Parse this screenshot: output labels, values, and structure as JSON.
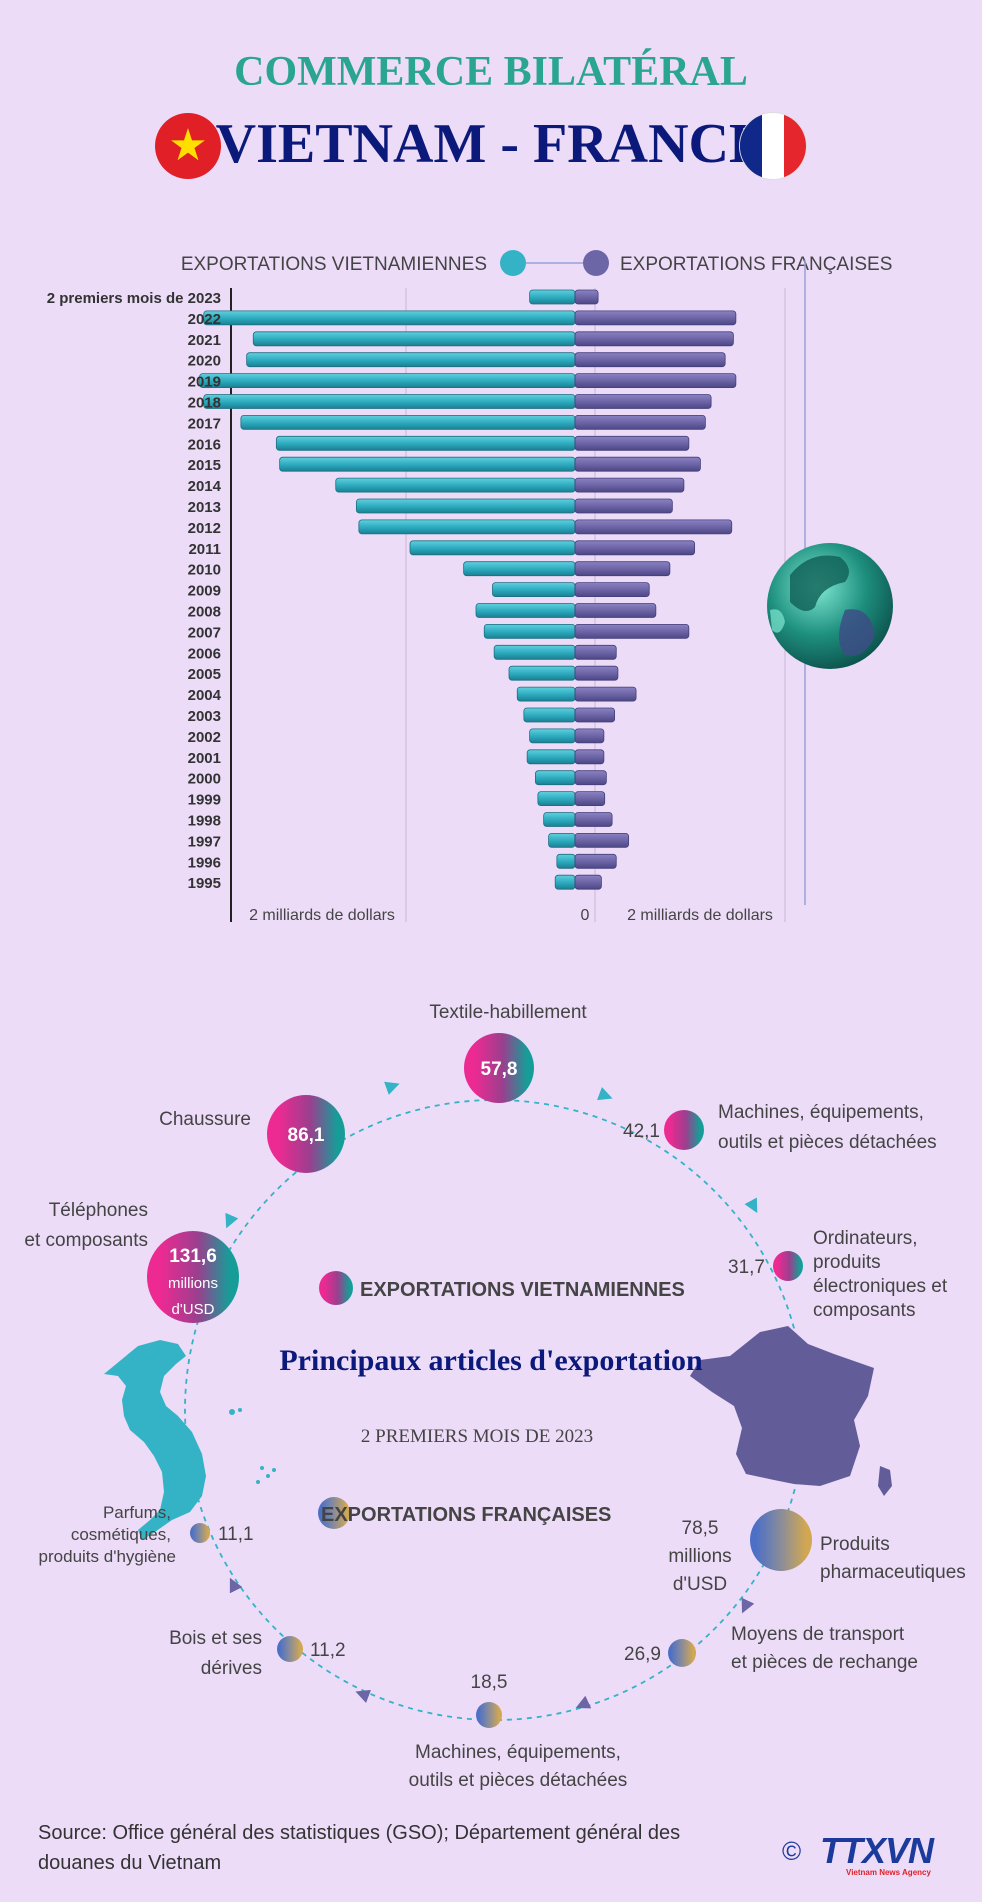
{
  "header": {
    "title_top": "COMMERCE BILATÉRAL",
    "title_main": "VIETNAM - FRANCE"
  },
  "colors": {
    "vn": "#34b3c6",
    "fr": "#6d66a6",
    "magenta": "#e53294",
    "teal_dark": "#1e8f93",
    "gold": "#c3a55e",
    "navy": "#0b1a7a",
    "background": "#ecdcf8"
  },
  "icons": [
    "vietnam-flag-icon",
    "france-flag-icon",
    "globe-icon",
    "vietnam-map-icon",
    "france-map-icon",
    "copyright-icon"
  ],
  "chart_data": [
    {
      "type": "bar",
      "orientation": "horizontal-diverging",
      "legend": [
        "EXPORTATIONS VIETNAMIENNES",
        "EXPORTATIONS FRANÇAISES"
      ],
      "legend_position": "top",
      "categories": [
        "2 premiers mois de 2023",
        "2022",
        "2021",
        "2020",
        "2019",
        "2018",
        "2017",
        "2016",
        "2015",
        "2014",
        "2013",
        "2012",
        "2011",
        "2010",
        "2009",
        "2008",
        "2007",
        "2006",
        "2005",
        "2004",
        "2003",
        "2002",
        "2001",
        "2000",
        "1999",
        "1998",
        "1997",
        "1996",
        "1995"
      ],
      "series": [
        {
          "name": "EXPORTATIONS VIETNAMIENNES",
          "values": [
            0.55,
            4.5,
            3.9,
            3.98,
            4.55,
            4.5,
            4.05,
            3.62,
            3.58,
            2.9,
            2.65,
            2.62,
            2.0,
            1.35,
            1.0,
            1.2,
            1.1,
            0.98,
            0.8,
            0.7,
            0.62,
            0.55,
            0.58,
            0.48,
            0.45,
            0.38,
            0.32,
            0.22,
            0.24
          ]
        },
        {
          "name": "EXPORTATIONS FRANÇAISES",
          "values": [
            0.28,
            1.95,
            1.92,
            1.82,
            1.95,
            1.65,
            1.58,
            1.38,
            1.52,
            1.32,
            1.18,
            1.9,
            1.45,
            1.15,
            0.9,
            0.98,
            1.38,
            0.5,
            0.52,
            0.74,
            0.48,
            0.35,
            0.35,
            0.38,
            0.36,
            0.45,
            0.65,
            0.5,
            0.32
          ]
        }
      ],
      "axis_labels": {
        "left": "2 milliards de dollars",
        "zero": "0",
        "right": "2 milliards de dollars"
      },
      "xlim": [
        -4.6,
        2.6
      ]
    },
    {
      "type": "bubble",
      "title": "Principaux articles d'exportation",
      "subtitle": "2  PREMIERS MOIS DE 2023",
      "groups": [
        {
          "name": "EXPORTATIONS VIETNAMIENNES",
          "items": [
            {
              "label": "Textile-habillement",
              "value": "57,8"
            },
            {
              "label": "Machines, équipements, outils et pièces détachées",
              "value": "42,1"
            },
            {
              "label": "Ordinateurs, produits électroniques et composants",
              "value": "31,7"
            },
            {
              "label": "Téléphones et composants",
              "value": "131,6",
              "unit": "millions d'USD"
            },
            {
              "label": "Chaussure",
              "value": "86,1"
            }
          ]
        },
        {
          "name": "EXPORTATIONS FRANÇAISES",
          "items": [
            {
              "label": "Produits pharmaceutiques",
              "value": "78,5",
              "unit": "millions d'USD"
            },
            {
              "label": "Moyens de transport et pièces de rechange",
              "value": "26,9"
            },
            {
              "label": "Machines, équipements, outils et pièces détachées",
              "value": "18,5"
            },
            {
              "label": "Bois et ses dérivés",
              "value": "11,2"
            },
            {
              "label": "Parfums, cosmétiques, produits d'hygiène",
              "value": "11,1"
            }
          ]
        }
      ],
      "labels": {
        "textile": "Textile-habillement",
        "machines_vn_1": "Machines, équipements,",
        "machines_vn_2": "outils et pièces détachées",
        "ordi_1": "Ordinateurs,",
        "ordi_2": "produits",
        "ordi_3": "électroniques et",
        "ordi_4": "composants",
        "tel_1": "Téléphones",
        "tel_2": "et composants",
        "chaussure": "Chaussure",
        "unit_1": "millions",
        "unit_2": "d'USD",
        "pharma_1": "Produits",
        "pharma_2": "pharmaceutiques",
        "transport_1": "Moyens de transport",
        "transport_2": "et pièces de rechange",
        "machines_fr_1": "Machines, équipements,",
        "machines_fr_2": "outils et pièces détachées",
        "bois_1": "Bois et ses",
        "bois_2": "dérives",
        "parfum_1": "Parfums,",
        "parfum_2": "cosmétiques,",
        "parfum_3": "produits d'hygiène"
      }
    }
  ],
  "footer": {
    "source": "Source: Office général des statistiques (GSO); Département général des douanes du Vietnam",
    "copyright": "©",
    "logo": "TTXVN",
    "logo_sub": "Vietnam News Agency"
  }
}
